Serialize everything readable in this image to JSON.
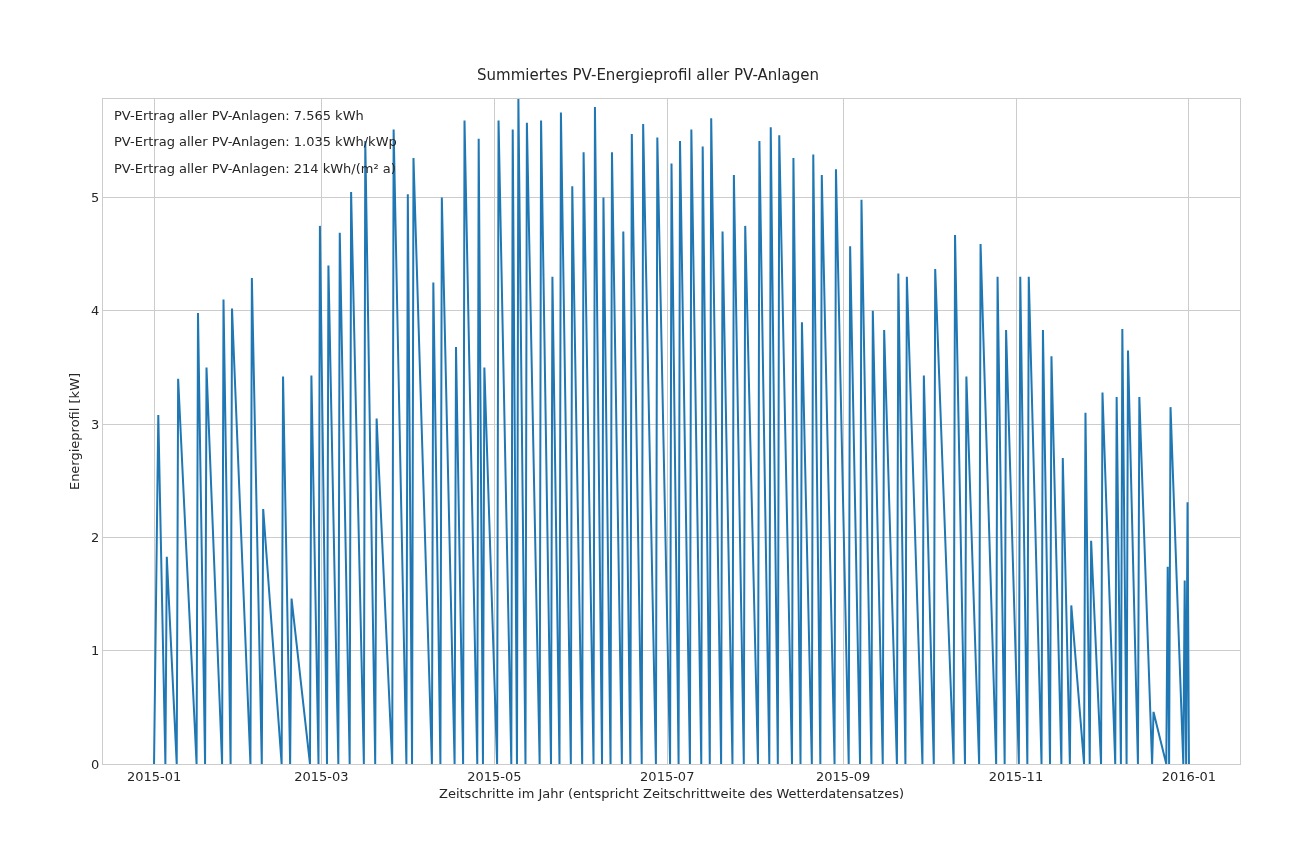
{
  "chart_data": {
    "type": "line",
    "title": "Summiertes PV-Energieprofil aller PV-Anlagen",
    "xlabel": "Zeitschritte im Jahr (entspricht Zeitschrittweite des Wetterdatensatzes)",
    "ylabel": "Energieprofil [kW]",
    "annotations": [
      "PV-Ertrag aller PV-Anlagen: 7.565 kWh",
      "PV-Ertrag aller PV-Anlagen: 1.035 kWh/kWp",
      "PV-Ertrag aller PV-Anlagen: 214 kWh/(m² a)"
    ],
    "xlim": [
      "2014-12-14",
      "2016-01-19"
    ],
    "xticks": [
      {
        "value": "2015-01-01",
        "label": "2015-01"
      },
      {
        "value": "2015-03-01",
        "label": "2015-03"
      },
      {
        "value": "2015-05-01",
        "label": "2015-05"
      },
      {
        "value": "2015-07-01",
        "label": "2015-07"
      },
      {
        "value": "2015-09-01",
        "label": "2015-09"
      },
      {
        "value": "2015-11-01",
        "label": "2015-11"
      },
      {
        "value": "2016-01-01",
        "label": "2016-01"
      }
    ],
    "ylim": [
      0,
      5.87
    ],
    "yticks": [
      0,
      1,
      2,
      3,
      4,
      5
    ],
    "grid": true,
    "line_style": "solid",
    "series": [
      {
        "color": "#1f77b4",
        "x": [
          "2015-01-01T00:00",
          "2015-01-02T12:00",
          "2015-01-05T00:00",
          "2015-01-05T12:00",
          "2015-01-09T00:00",
          "2015-01-09T12:00",
          "2015-01-16T00:00",
          "2015-01-16T12:00",
          "2015-01-19T00:00",
          "2015-01-19T12:00",
          "2015-01-25T00:00",
          "2015-01-25T12:00",
          "2015-01-28T00:00",
          "2015-01-28T12:00",
          "2015-02-04T00:00",
          "2015-02-04T12:00",
          "2015-02-08T00:00",
          "2015-02-08T12:00",
          "2015-02-15T00:00",
          "2015-02-15T12:00",
          "2015-02-18T00:00",
          "2015-02-18T12:00",
          "2015-02-25T00:00",
          "2015-02-25T12:00",
          "2015-02-28T00:00",
          "2015-02-28T12:00",
          "2015-03-03T00:00",
          "2015-03-03T12:00",
          "2015-03-07T00:00",
          "2015-03-07T12:00",
          "2015-03-11T00:00",
          "2015-03-11T12:00",
          "2015-03-16T00:00",
          "2015-03-16T12:00",
          "2015-03-20T00:00",
          "2015-03-20T12:00",
          "2015-03-26T00:00",
          "2015-03-26T12:00",
          "2015-03-31T00:00",
          "2015-03-31T12:00",
          "2015-04-02T00:00",
          "2015-04-02T12:00",
          "2015-04-09T00:00",
          "2015-04-09T12:00",
          "2015-04-12T00:00",
          "2015-04-12T12:00",
          "2015-04-17T00:00",
          "2015-04-17T12:00",
          "2015-04-20T00:00",
          "2015-04-20T12:00",
          "2015-04-25T00:00",
          "2015-04-25T12:00",
          "2015-04-27T00:00",
          "2015-04-27T12:00",
          "2015-05-02T00:00",
          "2015-05-02T12:00",
          "2015-05-07T00:00",
          "2015-05-07T12:00",
          "2015-05-09T00:00",
          "2015-05-09T12:00",
          "2015-05-12T00:00",
          "2015-05-12T12:00",
          "2015-05-17T00:00",
          "2015-05-17T12:00",
          "2015-05-21T00:00",
          "2015-05-21T12:00",
          "2015-05-24T00:00",
          "2015-05-24T12:00",
          "2015-05-28T00:00",
          "2015-05-28T12:00",
          "2015-06-01T00:00",
          "2015-06-01T12:00",
          "2015-06-05T00:00",
          "2015-06-05T12:00",
          "2015-06-08T00:00",
          "2015-06-08T12:00",
          "2015-06-11T00:00",
          "2015-06-11T12:00",
          "2015-06-15T00:00",
          "2015-06-15T12:00",
          "2015-06-18T00:00",
          "2015-06-18T12:00",
          "2015-06-22T00:00",
          "2015-06-22T12:00",
          "2015-06-27T00:00",
          "2015-06-27T12:00",
          "2015-07-02T00:00",
          "2015-07-02T12:00",
          "2015-07-05T00:00",
          "2015-07-05T12:00",
          "2015-07-09T00:00",
          "2015-07-09T12:00",
          "2015-07-13T00:00",
          "2015-07-13T12:00",
          "2015-07-16T00:00",
          "2015-07-16T12:00",
          "2015-07-20T00:00",
          "2015-07-20T12:00",
          "2015-07-24T00:00",
          "2015-07-24T12:00",
          "2015-07-28T00:00",
          "2015-07-28T12:00",
          "2015-08-02T00:00",
          "2015-08-02T12:00",
          "2015-08-06T00:00",
          "2015-08-06T12:00",
          "2015-08-09T00:00",
          "2015-08-09T12:00",
          "2015-08-14T00:00",
          "2015-08-14T12:00",
          "2015-08-17T00:00",
          "2015-08-17T12:00",
          "2015-08-21T00:00",
          "2015-08-21T12:00",
          "2015-08-24T00:00",
          "2015-08-24T12:00",
          "2015-08-29T00:00",
          "2015-08-29T12:00",
          "2015-09-03T00:00",
          "2015-09-03T12:00",
          "2015-09-07T00:00",
          "2015-09-07T12:00",
          "2015-09-11T00:00",
          "2015-09-11T12:00",
          "2015-09-15T00:00",
          "2015-09-15T12:00",
          "2015-09-20T00:00",
          "2015-09-20T12:00",
          "2015-09-23T00:00",
          "2015-09-23T12:00",
          "2015-09-29T00:00",
          "2015-09-29T12:00",
          "2015-10-03T00:00",
          "2015-10-03T12:00",
          "2015-10-10T00:00",
          "2015-10-10T12:00",
          "2015-10-14T00:00",
          "2015-10-14T12:00",
          "2015-10-19T00:00",
          "2015-10-19T12:00",
          "2015-10-25T00:00",
          "2015-10-25T12:00",
          "2015-10-28T00:00",
          "2015-10-28T12:00",
          "2015-11-02T00:00",
          "2015-11-02T12:00",
          "2015-11-05T00:00",
          "2015-11-05T12:00",
          "2015-11-10T00:00",
          "2015-11-10T12:00",
          "2015-11-13T00:00",
          "2015-11-13T12:00",
          "2015-11-17T00:00",
          "2015-11-17T12:00",
          "2015-11-20T00:00",
          "2015-11-20T12:00",
          "2015-11-25T00:00",
          "2015-11-25T12:00",
          "2015-11-27T00:00",
          "2015-11-27T12:00",
          "2015-12-01T00:00",
          "2015-12-01T12:00",
          "2015-12-06T00:00",
          "2015-12-06T12:00",
          "2015-12-08T00:00",
          "2015-12-08T12:00",
          "2015-12-10T00:00",
          "2015-12-10T12:00",
          "2015-12-14T00:00",
          "2015-12-14T12:00",
          "2015-12-19T00:00",
          "2015-12-19T12:00",
          "2015-12-24T00:00",
          "2015-12-24T12:00",
          "2015-12-25T00:00",
          "2015-12-25T12:00",
          "2015-12-30T00:00",
          "2015-12-30T12:00",
          "2015-12-31T00:00",
          "2015-12-31T12:00",
          "2016-01-01T00:00"
        ],
        "values": [
          0,
          3.08,
          0,
          1.83,
          0,
          3.4,
          0,
          3.98,
          0,
          3.5,
          0,
          4.1,
          0,
          4.02,
          0,
          4.29,
          0,
          2.25,
          0,
          3.42,
          0,
          1.46,
          0,
          3.43,
          0,
          4.75,
          0,
          4.4,
          0,
          4.69,
          0,
          5.05,
          0,
          5.5,
          0,
          3.05,
          0,
          5.6,
          0,
          5.03,
          0,
          5.35,
          0,
          4.25,
          0,
          5.0,
          0,
          3.68,
          0,
          5.68,
          0,
          5.52,
          0,
          3.5,
          0,
          5.68,
          0,
          5.6,
          0,
          5.87,
          0,
          5.66,
          0,
          5.68,
          0,
          4.3,
          0,
          5.75,
          0,
          5.1,
          0,
          5.4,
          0,
          5.8,
          0,
          5.0,
          0,
          5.4,
          0,
          4.7,
          0,
          5.56,
          0,
          5.65,
          0,
          5.53,
          0,
          5.3,
          0,
          5.5,
          0,
          5.6,
          0,
          5.45,
          0,
          5.7,
          0,
          4.7,
          0,
          5.2,
          0,
          4.75,
          0,
          5.5,
          0,
          5.62,
          0,
          5.55,
          0,
          5.35,
          0,
          3.9,
          0,
          5.38,
          0,
          5.2,
          0,
          5.25,
          0,
          4.57,
          0,
          4.98,
          0,
          4.0,
          0,
          3.83,
          0,
          4.33,
          0,
          4.3,
          0,
          3.43,
          0,
          4.37,
          0,
          4.67,
          0,
          3.42,
          0,
          4.59,
          0,
          4.3,
          0,
          3.83,
          0,
          4.3,
          0,
          4.3,
          0,
          3.83,
          0,
          3.6,
          0,
          2.7,
          0,
          1.4,
          0,
          3.1,
          0,
          1.97,
          0,
          3.28,
          0,
          3.24,
          0,
          3.84,
          0,
          3.65,
          0,
          3.24,
          0,
          0.46,
          0,
          1.74,
          0,
          3.15,
          0,
          1.62,
          0,
          2.31,
          0
        ]
      }
    ]
  }
}
